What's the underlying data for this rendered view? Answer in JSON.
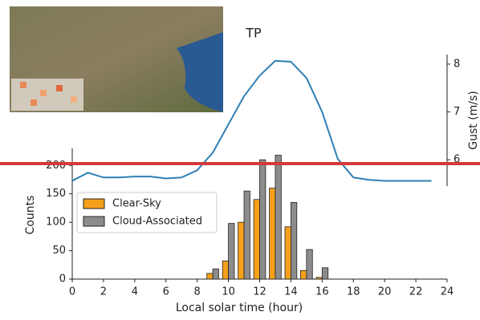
{
  "chart_data": {
    "type": "bar",
    "title": "TP",
    "xlabel": "Local solar time (hour)",
    "ylabel": "Counts",
    "y2label": "Gust (m/s)",
    "x": [
      9,
      10,
      11,
      12,
      13,
      14,
      15,
      16
    ],
    "series": [
      {
        "name": "Clear-Sky",
        "color": "#f5a01a",
        "values": [
          10,
          32,
          100,
          140,
          160,
          92,
          15,
          3
        ]
      },
      {
        "name": "Cloud-Associated",
        "color": "#8c8c8c",
        "values": [
          18,
          98,
          155,
          210,
          218,
          135,
          52,
          20
        ]
      }
    ],
    "line": {
      "type": "line",
      "color": "#2f7fb5",
      "axis": "y2",
      "x": [
        0,
        1,
        2,
        3,
        4,
        5,
        6,
        7,
        8,
        9,
        10,
        11,
        12,
        13,
        14,
        15,
        16,
        17,
        18,
        19,
        20,
        21,
        22,
        23
      ],
      "values": [
        5.56,
        5.73,
        5.63,
        5.63,
        5.65,
        5.65,
        5.61,
        5.63,
        5.78,
        6.15,
        6.74,
        7.33,
        7.76,
        8.07,
        8.05,
        7.71,
        7.0,
        6.02,
        5.63,
        5.58,
        5.56,
        5.56,
        5.56,
        5.56
      ]
    },
    "xlim": [
      0,
      24
    ],
    "xticks": [
      0,
      2,
      4,
      6,
      8,
      10,
      12,
      14,
      16,
      18,
      20,
      22,
      24
    ],
    "ylim": [
      0,
      230
    ],
    "yticks": [
      0,
      50,
      100,
      150,
      200
    ],
    "y2lim": [
      5.45,
      8.2
    ],
    "y2ticks": [
      6,
      7,
      8
    ],
    "legend": "upper left"
  }
}
